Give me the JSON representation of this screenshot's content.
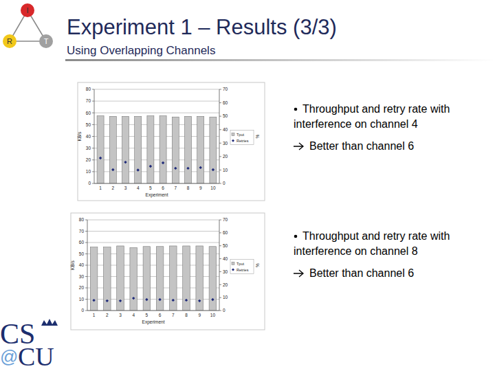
{
  "slide": {
    "title": "Experiment 1 – Results (3/3)",
    "subtitle": "Using Overlapping Channels",
    "logo_nodes": [
      "I",
      "R",
      "T"
    ],
    "footer_logo": [
      "CS",
      "@",
      "CU"
    ],
    "notes": [
      {
        "bullet": "Throughput and retry rate with interference on channel 4",
        "conclusion": "Better than channel 6"
      },
      {
        "bullet": "Throughput and retry rate with interference on channel 8",
        "conclusion": "Better than channel 6"
      }
    ]
  },
  "chart_data": [
    {
      "type": "bar",
      "x_label": "Experiment",
      "y_label": "KB/s",
      "y2_label": "%",
      "categories": [
        "1",
        "2",
        "3",
        "4",
        "5",
        "6",
        "7",
        "8",
        "9",
        "10"
      ],
      "series": [
        {
          "name": "Tput",
          "type": "bar",
          "color": "#c4c4c4",
          "values": [
            57.5,
            57,
            57,
            57,
            57.5,
            57.5,
            56.5,
            57,
            57,
            56.5
          ]
        },
        {
          "name": "Retries",
          "type": "scatter",
          "marker": "diamond",
          "color": "#1f2a7a",
          "axis": "y2",
          "values": [
            18.9,
            10.2,
            15.8,
            10,
            12.8,
            15.3,
            11.3,
            11.3,
            11.8,
            10.2
          ]
        }
      ],
      "ylim": [
        0,
        80
      ],
      "yticks": [
        0,
        10,
        20,
        30,
        40,
        50,
        60,
        70,
        80
      ],
      "y2lim": [
        0,
        70
      ],
      "y2ticks": [
        0,
        10,
        20,
        30,
        40,
        50,
        60,
        70
      ],
      "grid": true,
      "legend": "right"
    },
    {
      "type": "bar",
      "x_label": "Experiment",
      "y_label": "KB/s",
      "y2_label": "%",
      "categories": [
        "1",
        "2",
        "3",
        "4",
        "5",
        "6",
        "7",
        "8",
        "9",
        "10"
      ],
      "series": [
        {
          "name": "Tput",
          "type": "bar",
          "color": "#c4c4c4",
          "values": [
            56,
            56,
            57,
            55.5,
            56.5,
            56.5,
            57,
            57,
            57,
            56.5
          ]
        },
        {
          "name": "Retries",
          "type": "scatter",
          "marker": "diamond",
          "color": "#1f2a7a",
          "axis": "y2",
          "values": [
            7.9,
            7.5,
            7.5,
            9.5,
            8.5,
            8.5,
            8,
            8,
            7.5,
            8.5
          ]
        }
      ],
      "ylim": [
        0,
        80
      ],
      "yticks": [
        0,
        10,
        20,
        30,
        40,
        50,
        60,
        70,
        80
      ],
      "y2lim": [
        0,
        70
      ],
      "y2ticks": [
        0,
        10,
        20,
        30,
        40,
        50,
        60,
        70
      ],
      "grid": true,
      "legend": "right"
    }
  ]
}
